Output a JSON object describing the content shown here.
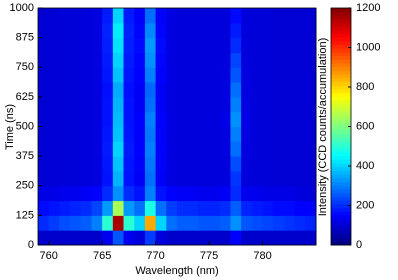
{
  "chart_data": {
    "type": "heatmap",
    "x_label": "Wavelength (nm)",
    "y_label": "Time (ns)",
    "colorbar_label": "Intensity (CCD counts/accumulation)",
    "colormap": "jet",
    "xlim": [
      759,
      785
    ],
    "xticks": [
      760,
      765,
      770,
      775,
      780
    ],
    "ylim": [
      0,
      1000
    ],
    "yticks": [
      0,
      125,
      250,
      375,
      500,
      625,
      750,
      875,
      1000
    ],
    "clim": [
      0,
      1200
    ],
    "cticks": [
      0,
      200,
      400,
      600,
      800,
      1000,
      1200
    ],
    "z": [
      [
        90,
        90,
        90,
        90,
        90,
        90,
        130,
        250,
        130,
        110,
        220,
        110,
        90,
        90,
        90,
        90,
        90,
        90,
        150,
        90,
        90,
        90,
        90,
        90,
        90,
        90
      ],
      [
        200,
        220,
        240,
        250,
        260,
        300,
        500,
        1150,
        500,
        400,
        850,
        400,
        280,
        260,
        260,
        250,
        250,
        260,
        320,
        250,
        240,
        230,
        220,
        210,
        200,
        190
      ],
      [
        160,
        170,
        180,
        190,
        200,
        230,
        330,
        650,
        330,
        280,
        480,
        280,
        220,
        200,
        200,
        190,
        190,
        200,
        260,
        190,
        180,
        170,
        160,
        160,
        150,
        150
      ],
      [
        120,
        120,
        130,
        130,
        140,
        150,
        200,
        320,
        200,
        170,
        300,
        170,
        150,
        140,
        140,
        130,
        130,
        140,
        200,
        130,
        130,
        120,
        120,
        120,
        110,
        110
      ],
      [
        100,
        100,
        105,
        105,
        110,
        115,
        170,
        360,
        170,
        140,
        280,
        140,
        115,
        110,
        110,
        110,
        110,
        110,
        210,
        110,
        105,
        105,
        100,
        100,
        100,
        100
      ],
      [
        100,
        100,
        105,
        105,
        110,
        115,
        175,
        380,
        175,
        145,
        290,
        145,
        115,
        110,
        110,
        110,
        110,
        110,
        240,
        110,
        105,
        105,
        100,
        100,
        100,
        100
      ],
      [
        100,
        100,
        105,
        105,
        110,
        115,
        180,
        400,
        180,
        150,
        300,
        150,
        115,
        110,
        110,
        110,
        110,
        115,
        280,
        115,
        105,
        105,
        100,
        100,
        100,
        100
      ],
      [
        100,
        100,
        105,
        105,
        110,
        115,
        175,
        380,
        175,
        145,
        290,
        145,
        115,
        110,
        110,
        110,
        110,
        115,
        300,
        115,
        105,
        105,
        100,
        100,
        100,
        100
      ],
      [
        100,
        100,
        105,
        105,
        110,
        115,
        170,
        370,
        170,
        150,
        300,
        150,
        115,
        110,
        110,
        110,
        110,
        120,
        320,
        120,
        105,
        105,
        100,
        100,
        100,
        100
      ],
      [
        100,
        100,
        105,
        105,
        110,
        115,
        170,
        360,
        170,
        140,
        280,
        140,
        115,
        110,
        110,
        110,
        110,
        115,
        300,
        115,
        105,
        105,
        100,
        100,
        100,
        100
      ],
      [
        100,
        100,
        105,
        105,
        110,
        115,
        165,
        350,
        165,
        140,
        270,
        140,
        115,
        110,
        110,
        110,
        110,
        115,
        280,
        115,
        105,
        105,
        100,
        100,
        100,
        100
      ],
      [
        100,
        100,
        105,
        105,
        110,
        115,
        175,
        380,
        175,
        150,
        300,
        150,
        115,
        110,
        110,
        110,
        110,
        115,
        250,
        115,
        105,
        105,
        100,
        100,
        100,
        100
      ],
      [
        100,
        100,
        105,
        105,
        110,
        115,
        180,
        400,
        180,
        155,
        320,
        155,
        115,
        110,
        110,
        110,
        110,
        110,
        230,
        110,
        105,
        105,
        100,
        100,
        100,
        100
      ],
      [
        100,
        100,
        105,
        105,
        110,
        115,
        185,
        420,
        185,
        160,
        330,
        160,
        115,
        110,
        110,
        110,
        110,
        110,
        200,
        110,
        105,
        105,
        100,
        100,
        100,
        100
      ],
      [
        100,
        100,
        105,
        105,
        110,
        115,
        190,
        430,
        190,
        155,
        310,
        155,
        115,
        110,
        110,
        110,
        110,
        110,
        180,
        110,
        105,
        105,
        100,
        100,
        100,
        100
      ],
      [
        100,
        100,
        105,
        105,
        110,
        115,
        180,
        400,
        180,
        145,
        280,
        145,
        115,
        110,
        110,
        110,
        110,
        110,
        160,
        110,
        105,
        105,
        100,
        100,
        100,
        100
      ]
    ]
  }
}
